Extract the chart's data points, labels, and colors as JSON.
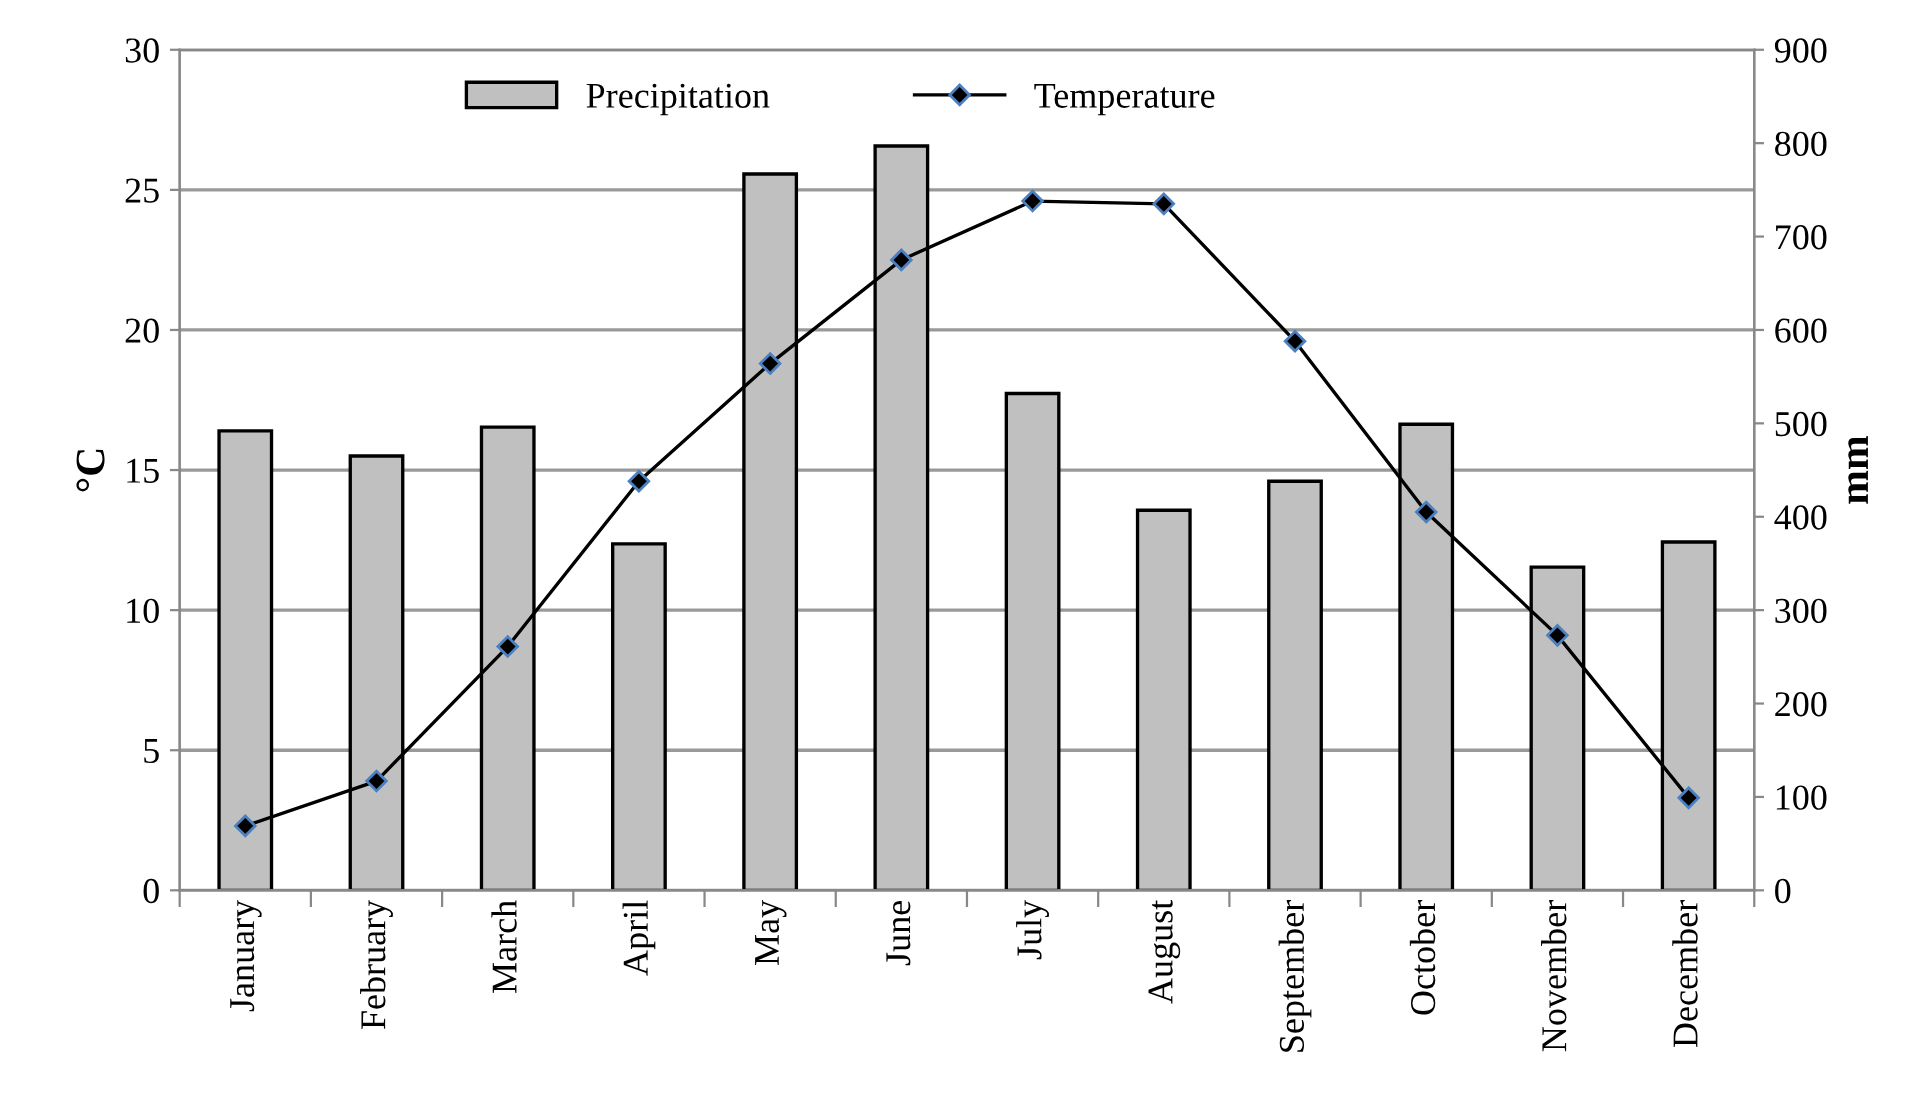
{
  "chart_data": {
    "type": "bar",
    "categories": [
      "January",
      "February",
      "March",
      "April",
      "May",
      "June",
      "July",
      "August",
      "September",
      "October",
      "November",
      "December"
    ],
    "ylabel": "°C",
    "y2label": "mm",
    "ylim": [
      0,
      30
    ],
    "yticks": [
      0,
      5,
      10,
      15,
      20,
      25,
      30
    ],
    "y2lim": [
      0,
      900
    ],
    "y2ticks": [
      0,
      100,
      200,
      300,
      400,
      500,
      600,
      700,
      800,
      900
    ],
    "grid": "y",
    "legend": "top",
    "series": [
      {
        "name": "Precipitation",
        "axis": "y2",
        "color": "#c0c0c0",
        "values": [
          492,
          465,
          496,
          371,
          767,
          797,
          532,
          407,
          438,
          499,
          346,
          373
        ]
      },
      {
        "name": "Temperature",
        "type": "line",
        "axis": "y",
        "color": "#000000",
        "marker": "diamond",
        "line_style": "solid",
        "values": [
          2.3,
          3.9,
          8.7,
          14.6,
          18.8,
          22.5,
          24.6,
          24.5,
          19.6,
          13.5,
          9.1,
          3.3
        ]
      }
    ]
  }
}
